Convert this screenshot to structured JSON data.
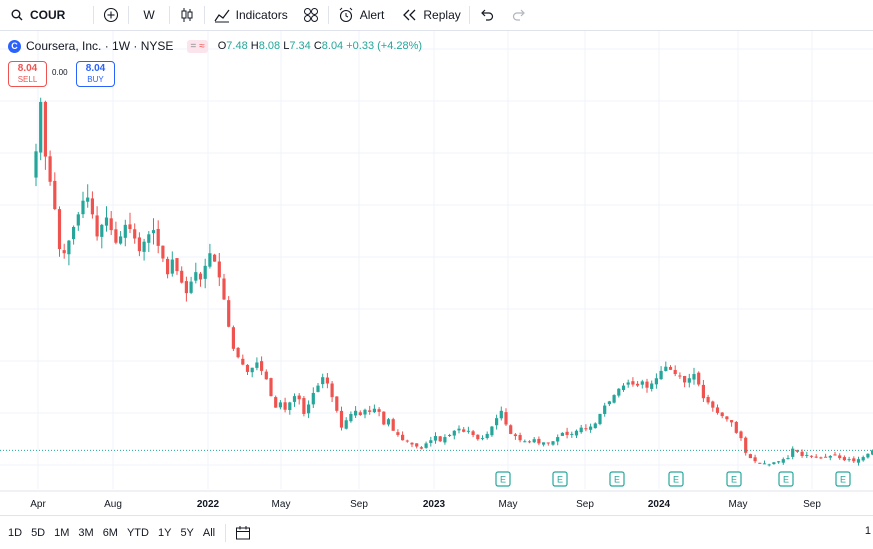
{
  "toolbar": {
    "symbol": "COUR",
    "interval": "W",
    "indicators_label": "Indicators",
    "alert_label": "Alert",
    "replay_label": "Replay"
  },
  "legend": {
    "title": "Coursera, Inc. · 1W · NYSE",
    "o_key": "O",
    "o_val": "7.48",
    "h_key": "H",
    "h_val": "8.08",
    "l_key": "L",
    "l_val": "7.34",
    "c_key": "C",
    "c_val": "8.04",
    "change": "+0.33 (+4.28%)"
  },
  "trade": {
    "sell_price": "8.04",
    "sell_label": "SELL",
    "spread": "0.00",
    "buy_price": "8.04",
    "buy_label": "BUY"
  },
  "ranges": [
    "1D",
    "5D",
    "1M",
    "3M",
    "6M",
    "YTD",
    "1Y",
    "5Y",
    "All"
  ],
  "corner_text": "1",
  "colors": {
    "up": "#26a69a",
    "down": "#ef5350",
    "accent": "#2962ff",
    "grid": "#f0f3fa",
    "last_price_line": "#26a69a"
  },
  "chart_data": {
    "type": "candlestick",
    "symbol": "COUR",
    "interval": "1W",
    "x_ticks": [
      "Apr",
      "Aug",
      "2022",
      "May",
      "Sep",
      "2023",
      "May",
      "Sep",
      "2024",
      "May",
      "Sep"
    ],
    "x_tick_bold": [
      false,
      false,
      true,
      false,
      false,
      true,
      false,
      false,
      true,
      false,
      false
    ],
    "ylim": [
      5.5,
      47
    ],
    "last_close": 8.04,
    "earnings_marker": "E",
    "earnings_markers": 7,
    "weekly_close": [
      36.5,
      41.2,
      36.0,
      33.6,
      31.0,
      27.2,
      26.8,
      28.0,
      29.3,
      30.5,
      31.8,
      32.1,
      30.5,
      28.4,
      29.5,
      30.2,
      29.0,
      27.8,
      28.4,
      29.5,
      29.1,
      28.2,
      27.0,
      27.9,
      28.6,
      29.0,
      27.5,
      26.3,
      24.8,
      26.2,
      25.1,
      24.0,
      23.0,
      24.1,
      25.0,
      24.3,
      25.6,
      26.8,
      26.0,
      24.5,
      22.4,
      19.8,
      17.7,
      16.9,
      16.2,
      15.5,
      15.9,
      16.4,
      15.6,
      14.8,
      13.2,
      12.1,
      12.6,
      11.9,
      12.6,
      13.2,
      12.9,
      11.5,
      12.4,
      13.5,
      14.2,
      15.0,
      14.4,
      13.1,
      11.8,
      10.2,
      10.9,
      11.5,
      11.8,
      11.4,
      11.9,
      11.7,
      12.0,
      11.7,
      10.5,
      11.0,
      9.9,
      9.5,
      9.0,
      8.9,
      8.6,
      8.4,
      8.2,
      8.7,
      9.0,
      9.4,
      8.9,
      9.3,
      9.5,
      9.9,
      10.1,
      9.8,
      9.9,
      9.5,
      9.1,
      9.2,
      9.6,
      10.3,
      11.1,
      11.8,
      10.5,
      9.6,
      9.4,
      9.0,
      8.9,
      8.8,
      9.1,
      8.7,
      8.8,
      8.7,
      8.9,
      9.3,
      9.7,
      9.5,
      9.6,
      9.9,
      10.2,
      10.1,
      10.3,
      10.6,
      11.5,
      12.3,
      12.7,
      13.3,
      13.9,
      14.2,
      14.5,
      14.3,
      14.2,
      14.6,
      14.0,
      14.4,
      14.9,
      15.6,
      16.0,
      15.7,
      15.3,
      15.1,
      14.5,
      14.9,
      15.3,
      14.3,
      13.0,
      12.6,
      12.1,
      11.6,
      11.3,
      11.0,
      10.7,
      9.7,
      9.2,
      7.8,
      7.3,
      7.0,
      6.8,
      6.8,
      6.7,
      6.9,
      7.0,
      7.2,
      7.3,
      8.2,
      7.9,
      7.5,
      7.6,
      7.5,
      7.4,
      7.3,
      7.4,
      7.5,
      7.6,
      7.3,
      7.1,
      7.2,
      7.0,
      7.2,
      7.4,
      7.71,
      8.04
    ]
  }
}
